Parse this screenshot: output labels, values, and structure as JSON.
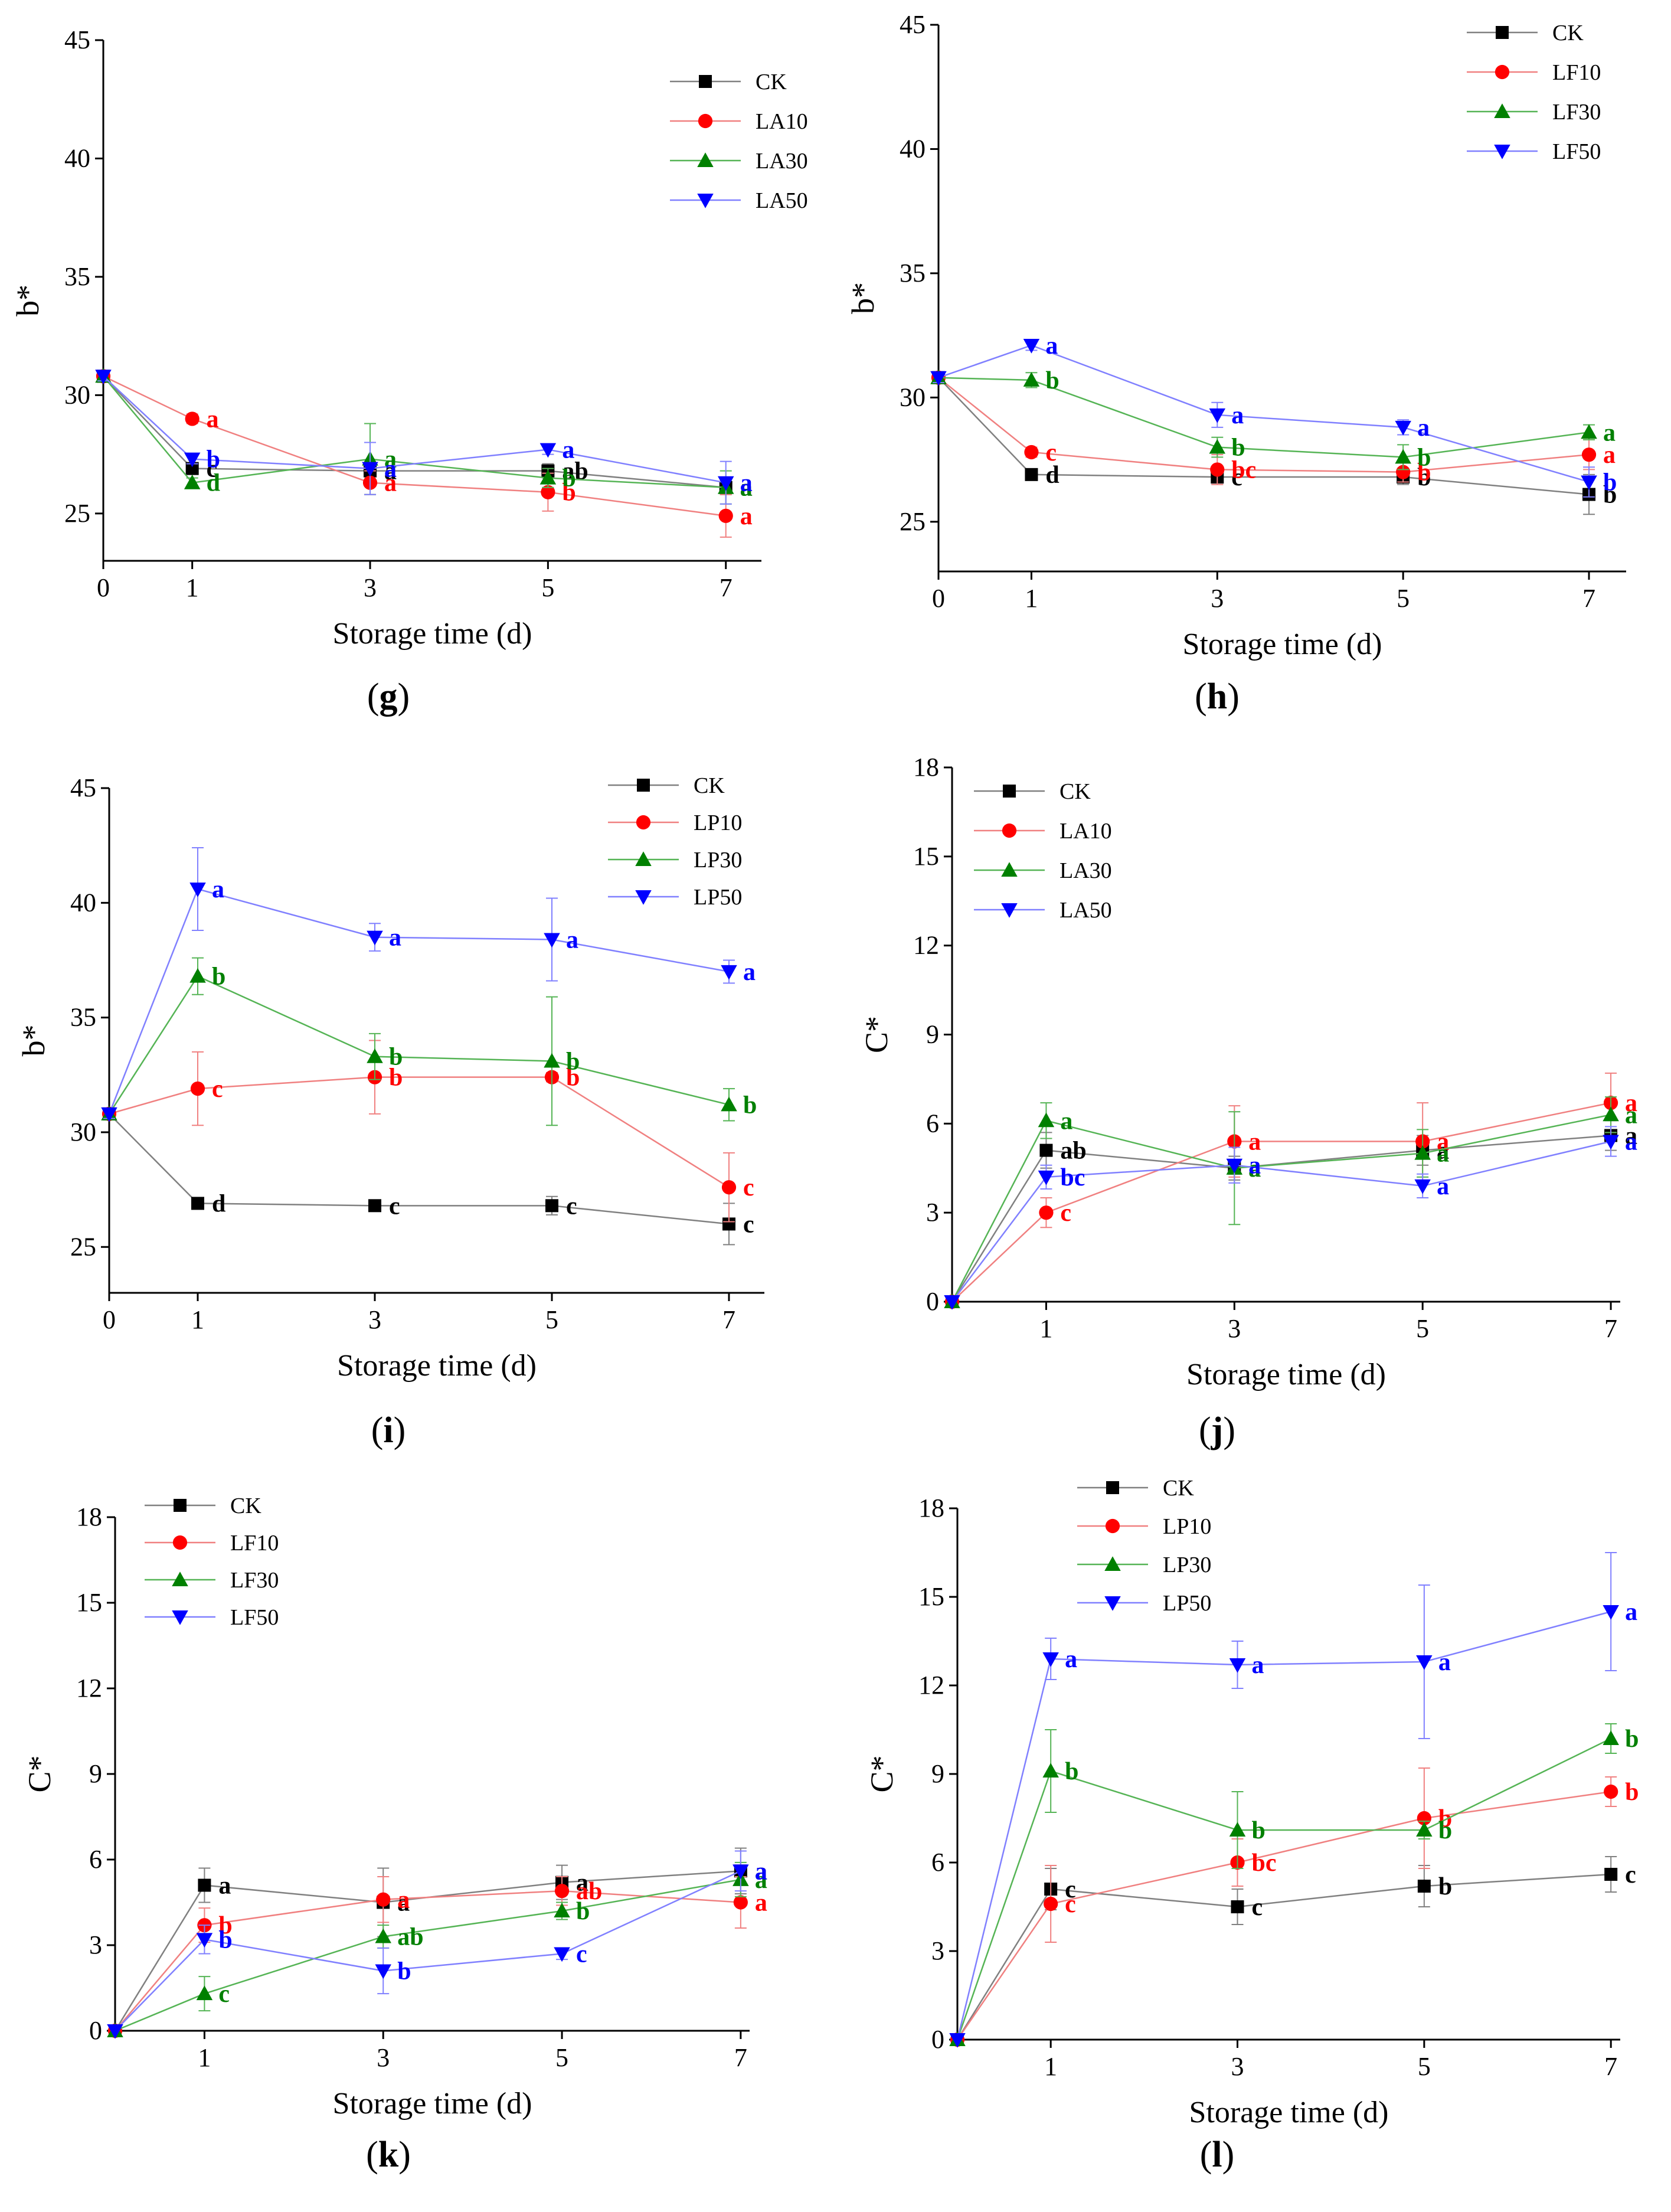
{
  "figure_title": "",
  "chart_data": [
    {
      "id": "g",
      "type": "line",
      "panel_label": "g",
      "xlabel": "Storage time (d)",
      "ylabel": "b*",
      "xlim": [
        0,
        7.4
      ],
      "ylim": [
        23,
        45
      ],
      "xticks": [
        0,
        1,
        3,
        5,
        7
      ],
      "yticks": [
        25,
        30,
        35,
        40,
        45
      ],
      "x": [
        0,
        1,
        3,
        5,
        7
      ],
      "legend_position": "top-right",
      "series": [
        {
          "name": "CK",
          "marker": "square",
          "values": [
            30.8,
            26.9,
            26.8,
            26.8,
            26.1
          ],
          "errors": [
            0.2,
            0.2,
            0.2,
            0.3,
            0.3
          ],
          "letters": [
            "",
            "c",
            "a",
            "ab",
            "a"
          ]
        },
        {
          "name": "LA10",
          "marker": "circle",
          "values": [
            30.8,
            29.0,
            26.3,
            25.9,
            24.9
          ],
          "errors": [
            0.2,
            0.2,
            0.5,
            0.8,
            0.9
          ],
          "letters": [
            "",
            "a",
            "a",
            "b",
            "a"
          ]
        },
        {
          "name": "LA30",
          "marker": "triangle-up",
          "values": [
            30.8,
            26.3,
            27.3,
            26.5,
            26.1
          ],
          "errors": [
            0.2,
            0.2,
            1.5,
            0.4,
            0.7
          ],
          "letters": [
            "",
            "d",
            "a",
            "b",
            "a"
          ]
        },
        {
          "name": "LA50",
          "marker": "triangle-down",
          "values": [
            30.8,
            27.3,
            26.9,
            27.7,
            26.3
          ],
          "errors": [
            0.2,
            0.2,
            1.1,
            0.2,
            0.9
          ],
          "letters": [
            "",
            "b",
            "a",
            "a",
            "a"
          ]
        }
      ]
    },
    {
      "id": "h",
      "type": "line",
      "panel_label": "h",
      "xlabel": "Storage time (d)",
      "ylabel": "b*",
      "xlim": [
        0,
        7.4
      ],
      "ylim": [
        23,
        45
      ],
      "xticks": [
        0,
        1,
        3,
        5,
        7
      ],
      "yticks": [
        25,
        30,
        35,
        40,
        45
      ],
      "x": [
        0,
        1,
        3,
        5,
        7
      ],
      "legend_position": "top-right",
      "series": [
        {
          "name": "CK",
          "marker": "square",
          "values": [
            30.8,
            26.9,
            26.8,
            26.8,
            26.1
          ],
          "errors": [
            0.2,
            0.2,
            0.3,
            0.3,
            0.8
          ],
          "letters": [
            "",
            "d",
            "c",
            "b",
            "b"
          ]
        },
        {
          "name": "LF10",
          "marker": "circle",
          "values": [
            30.8,
            27.8,
            27.1,
            27.0,
            27.7
          ],
          "errors": [
            0.2,
            0.2,
            0.6,
            0.4,
            0.6
          ],
          "letters": [
            "",
            "c",
            "bc",
            "b",
            "a"
          ]
        },
        {
          "name": "LF30",
          "marker": "triangle-up",
          "values": [
            30.8,
            30.7,
            28.0,
            27.6,
            28.6
          ],
          "errors": [
            0.2,
            0.3,
            0.4,
            0.5,
            0.3
          ],
          "letters": [
            "",
            "b",
            "b",
            "b",
            "a"
          ]
        },
        {
          "name": "LF50",
          "marker": "triangle-down",
          "values": [
            30.8,
            32.1,
            29.3,
            28.8,
            26.6
          ],
          "errors": [
            0.2,
            0.2,
            0.5,
            0.3,
            0.6
          ],
          "letters": [
            "",
            "a",
            "a",
            "a",
            "b"
          ]
        }
      ]
    },
    {
      "id": "i",
      "type": "line",
      "panel_label": "i",
      "xlabel": "Storage time (d)",
      "ylabel": "b*",
      "xlim": [
        0,
        7.4
      ],
      "ylim": [
        23,
        45
      ],
      "xticks": [
        0,
        1,
        3,
        5,
        7
      ],
      "yticks": [
        25,
        30,
        35,
        40,
        45
      ],
      "x": [
        0,
        1,
        3,
        5,
        7
      ],
      "legend_position": "top-right",
      "series": [
        {
          "name": "CK",
          "marker": "square",
          "values": [
            30.8,
            26.9,
            26.8,
            26.8,
            26.0
          ],
          "errors": [
            0.2,
            0.2,
            0.2,
            0.4,
            0.9
          ],
          "letters": [
            "",
            "d",
            "c",
            "c",
            "c"
          ]
        },
        {
          "name": "LP10",
          "marker": "circle",
          "values": [
            30.8,
            31.9,
            32.4,
            32.4,
            27.6
          ],
          "errors": [
            0.2,
            1.6,
            1.6,
            0.2,
            1.5
          ],
          "letters": [
            "",
            "c",
            "b",
            "b",
            "c"
          ]
        },
        {
          "name": "LP30",
          "marker": "triangle-up",
          "values": [
            30.8,
            36.8,
            33.3,
            33.1,
            31.2
          ],
          "errors": [
            0.2,
            0.8,
            1.0,
            2.8,
            0.7
          ],
          "letters": [
            "",
            "b",
            "b",
            "b",
            "b"
          ]
        },
        {
          "name": "LP50",
          "marker": "triangle-down",
          "values": [
            30.8,
            40.6,
            38.5,
            38.4,
            37.0
          ],
          "errors": [
            0.2,
            1.8,
            0.6,
            1.8,
            0.5
          ],
          "letters": [
            "",
            "a",
            "a",
            "a",
            "a"
          ]
        }
      ]
    },
    {
      "id": "j",
      "type": "line",
      "panel_label": "j",
      "xlabel": "Storage time (d)",
      "ylabel": "C*",
      "xlim": [
        0,
        7.1
      ],
      "ylim": [
        0,
        18
      ],
      "xticks": [
        1,
        3,
        5,
        7
      ],
      "yticks": [
        0,
        3,
        6,
        9,
        12,
        15,
        18
      ],
      "x": [
        0,
        1,
        3,
        5,
        7
      ],
      "legend_position": "top-left",
      "series": [
        {
          "name": "CK",
          "marker": "square",
          "values": [
            0,
            5.1,
            4.5,
            5.1,
            5.6
          ],
          "errors": [
            0,
            0.6,
            0.4,
            0.5,
            0.5
          ],
          "letters": [
            "",
            "ab",
            "a",
            "a",
            "a"
          ]
        },
        {
          "name": "LA10",
          "marker": "circle",
          "values": [
            0,
            3.0,
            5.4,
            5.4,
            6.7
          ],
          "errors": [
            0,
            0.5,
            1.2,
            1.3,
            1.0
          ],
          "letters": [
            "",
            "c",
            "a",
            "a",
            "a"
          ]
        },
        {
          "name": "LA30",
          "marker": "triangle-up",
          "values": [
            0,
            6.1,
            4.5,
            5.0,
            6.3
          ],
          "errors": [
            0,
            0.6,
            1.9,
            0.8,
            0.6
          ],
          "letters": [
            "",
            "a",
            "a",
            "a",
            "a"
          ]
        },
        {
          "name": "LA50",
          "marker": "triangle-down",
          "values": [
            0,
            4.2,
            4.6,
            3.9,
            5.4
          ],
          "errors": [
            0,
            0.4,
            0.6,
            0.4,
            0.5
          ],
          "letters": [
            "",
            "bc",
            "a",
            "a",
            "a"
          ]
        }
      ]
    },
    {
      "id": "k",
      "type": "line",
      "panel_label": "k",
      "xlabel": "Storage time (d)",
      "ylabel": "C*",
      "xlim": [
        0,
        7.1
      ],
      "ylim": [
        0,
        18
      ],
      "xticks": [
        1,
        3,
        5,
        7
      ],
      "yticks": [
        0,
        3,
        6,
        9,
        12,
        15,
        18
      ],
      "x": [
        0,
        1,
        3,
        5,
        7
      ],
      "legend_position": "top-left",
      "series": [
        {
          "name": "CK",
          "marker": "square",
          "values": [
            0,
            5.1,
            4.5,
            5.2,
            5.6
          ],
          "errors": [
            0,
            0.6,
            1.2,
            0.6,
            0.8
          ],
          "letters": [
            "",
            "a",
            "a",
            "a",
            "a"
          ]
        },
        {
          "name": "LF10",
          "marker": "circle",
          "values": [
            0,
            3.7,
            4.6,
            4.9,
            4.5
          ],
          "errors": [
            0,
            0.6,
            0.8,
            0.5,
            0.9
          ],
          "letters": [
            "",
            "b",
            "a",
            "ab",
            "a"
          ]
        },
        {
          "name": "LF30",
          "marker": "triangle-up",
          "values": [
            0,
            1.3,
            3.3,
            4.2,
            5.3
          ],
          "errors": [
            0,
            0.6,
            0.4,
            0.3,
            0.6
          ],
          "letters": [
            "",
            "c",
            "ab",
            "b",
            "a"
          ]
        },
        {
          "name": "LF50",
          "marker": "triangle-down",
          "values": [
            0,
            3.2,
            2.1,
            2.7,
            5.6
          ],
          "errors": [
            0,
            0.5,
            0.8,
            0.2,
            0.7
          ],
          "letters": [
            "",
            "b",
            "b",
            "c",
            "a"
          ]
        }
      ]
    },
    {
      "id": "l",
      "type": "line",
      "panel_label": "l",
      "xlabel": "Storage time (d)",
      "ylabel": "C*",
      "xlim": [
        0,
        7.1
      ],
      "ylim": [
        0,
        18
      ],
      "xticks": [
        1,
        3,
        5,
        7
      ],
      "yticks": [
        0,
        3,
        6,
        9,
        12,
        15,
        18
      ],
      "x": [
        0,
        1,
        3,
        5,
        7
      ],
      "legend_position": "top-left",
      "series": [
        {
          "name": "CK",
          "marker": "square",
          "values": [
            0,
            5.1,
            4.5,
            5.2,
            5.6
          ],
          "errors": [
            0,
            0.7,
            0.6,
            0.7,
            0.6
          ],
          "letters": [
            "",
            "c",
            "c",
            "b",
            "c"
          ]
        },
        {
          "name": "LP10",
          "marker": "circle",
          "values": [
            0,
            4.6,
            6.0,
            7.5,
            8.4
          ],
          "errors": [
            0,
            1.3,
            0.8,
            1.7,
            0.5
          ],
          "letters": [
            "",
            "c",
            "bc",
            "b",
            "b"
          ]
        },
        {
          "name": "LP30",
          "marker": "triangle-up",
          "values": [
            0,
            9.1,
            7.1,
            7.1,
            10.2
          ],
          "errors": [
            0,
            1.4,
            1.3,
            0.3,
            0.5
          ],
          "letters": [
            "",
            "b",
            "b",
            "b",
            "b"
          ]
        },
        {
          "name": "LP50",
          "marker": "triangle-down",
          "values": [
            0,
            12.9,
            12.7,
            12.8,
            14.5
          ],
          "errors": [
            0,
            0.7,
            0.8,
            2.6,
            2.0
          ],
          "letters": [
            "",
            "a",
            "a",
            "a",
            "a"
          ]
        }
      ]
    }
  ],
  "colors": {
    "ck_line": "#808080",
    "ck_marker": "#000000",
    "s10_line": "#f08080",
    "s10_marker": "#ff0000",
    "s30_line": "#55b455",
    "s30_marker": "#008000",
    "s50_line": "#8080ff",
    "s50_marker": "#0000ff"
  }
}
